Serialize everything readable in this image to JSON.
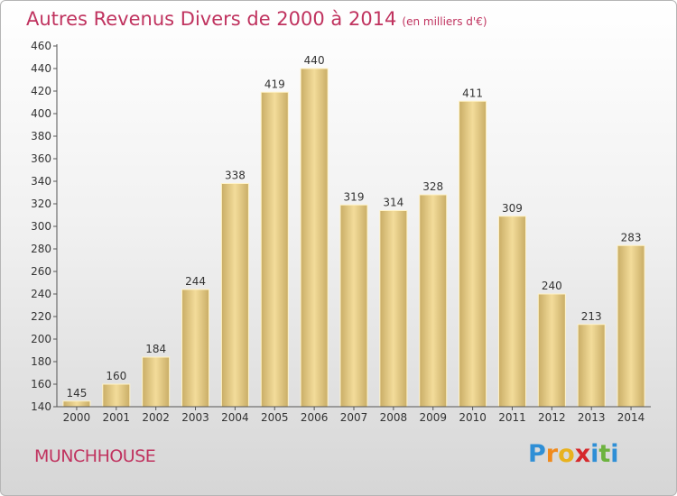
{
  "chart_data": {
    "type": "bar",
    "title": "Autres Revenus Divers de 2000 à 2014",
    "unit_note": "(en milliers d'€)",
    "categories": [
      "2000",
      "2001",
      "2002",
      "2003",
      "2004",
      "2005",
      "2006",
      "2007",
      "2008",
      "2009",
      "2010",
      "2011",
      "2012",
      "2013",
      "2014"
    ],
    "values": [
      145,
      160,
      184,
      244,
      338,
      419,
      440,
      319,
      314,
      328,
      411,
      309,
      240,
      213,
      283
    ],
    "ylim": [
      140,
      460
    ],
    "yticks": [
      140,
      160,
      180,
      200,
      220,
      240,
      260,
      280,
      300,
      320,
      340,
      360,
      380,
      400,
      420,
      440,
      460
    ],
    "grid": false,
    "bar_color_light": "#f3dc9a",
    "bar_color_dark": "#c9ad66"
  },
  "footer": {
    "commune": "MUNCHHOUSE"
  },
  "logo": {
    "letters": [
      {
        "ch": "P",
        "color": "#2f8fd6"
      },
      {
        "ch": "r",
        "color": "#f08a1c"
      },
      {
        "ch": "o",
        "color": "#e8b21e"
      },
      {
        "ch": "x",
        "color": "#d6282b"
      },
      {
        "ch": "i",
        "color": "#2f8fd6"
      },
      {
        "ch": "t",
        "color": "#6db33f"
      },
      {
        "ch": "i",
        "color": "#2f8fd6"
      }
    ]
  }
}
